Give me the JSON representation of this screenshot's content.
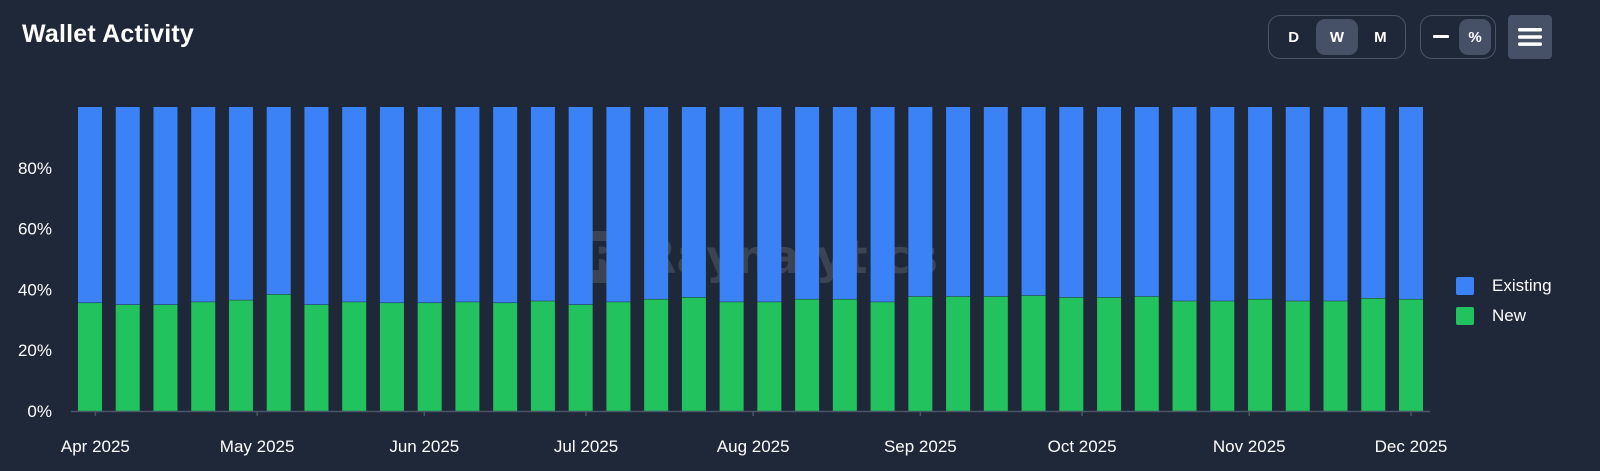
{
  "title": "Wallet Activity",
  "controls": {
    "period": [
      {
        "label": "D",
        "active": false
      },
      {
        "label": "W",
        "active": true
      },
      {
        "label": "M",
        "active": false
      }
    ],
    "mode": [
      {
        "label": "—",
        "active": false
      },
      {
        "label": "%",
        "active": true
      }
    ],
    "menu_icon": "hamburger-menu-icon"
  },
  "watermark": {
    "logo": "R",
    "text": "Raynalytics"
  },
  "colors": {
    "background": "#1f2838",
    "existing": "#3b82f6",
    "new": "#22c35e",
    "axis": "#4b5566"
  },
  "chart_data": {
    "type": "bar",
    "stacked": true,
    "stack_mode": "percent",
    "title": "",
    "xlabel": "",
    "ylabel": "",
    "ylim": [
      0,
      100
    ],
    "ytick_labels": [
      "0%",
      "20%",
      "40%",
      "60%",
      "80%"
    ],
    "yticks": [
      0,
      20,
      40,
      60,
      80
    ],
    "xtick_labels": [
      "Apr 2025",
      "May 2025",
      "Jun 2025",
      "Jul 2025",
      "Aug 2025",
      "Sep 2025",
      "Oct 2025",
      "Nov 2025",
      "Dec 2025"
    ],
    "categories": [
      "2025-03-31",
      "2025-04-07",
      "2025-04-14",
      "2025-04-21",
      "2025-04-28",
      "2025-05-05",
      "2025-05-12",
      "2025-05-19",
      "2025-05-26",
      "2025-06-02",
      "2025-06-09",
      "2025-06-16",
      "2025-06-23",
      "2025-06-30",
      "2025-07-07",
      "2025-07-14",
      "2025-07-21",
      "2025-07-28",
      "2025-08-04",
      "2025-08-11",
      "2025-08-18",
      "2025-08-25",
      "2025-09-01",
      "2025-09-08",
      "2025-09-15",
      "2025-09-22",
      "2025-09-29",
      "2025-10-06",
      "2025-10-13",
      "2025-10-20",
      "2025-10-27",
      "2025-11-03",
      "2025-11-10",
      "2025-11-17",
      "2025-11-24",
      "2025-12-01"
    ],
    "legend_position": "right",
    "grid": false,
    "series": [
      {
        "name": "Existing",
        "color": "#3b82f6",
        "values": [
          64.5,
          65.1,
          65.1,
          64.2,
          63.6,
          61.7,
          65.1,
          64.2,
          64.5,
          64.5,
          64.2,
          64.5,
          63.9,
          65.1,
          64.2,
          63.3,
          62.7,
          64.2,
          64.2,
          63.3,
          63.3,
          64.2,
          62.4,
          62.4,
          62.4,
          62.1,
          62.7,
          62.7,
          62.4,
          63.9,
          63.9,
          63.3,
          63.9,
          63.9,
          63.0,
          63.3
        ]
      },
      {
        "name": "New",
        "color": "#22c35e",
        "values": [
          35.5,
          34.9,
          34.9,
          35.8,
          36.4,
          38.3,
          34.9,
          35.8,
          35.5,
          35.5,
          35.8,
          35.5,
          36.1,
          34.9,
          35.8,
          36.7,
          37.3,
          35.8,
          35.8,
          36.7,
          36.7,
          35.8,
          37.6,
          37.6,
          37.6,
          37.9,
          37.3,
          37.3,
          37.6,
          36.1,
          36.1,
          36.7,
          36.1,
          36.1,
          37.0,
          36.7
        ]
      }
    ]
  }
}
